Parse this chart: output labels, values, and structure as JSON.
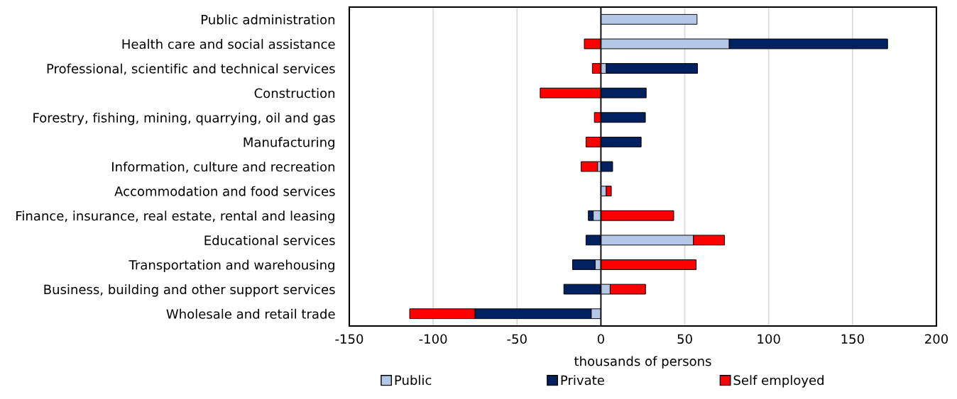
{
  "chart_data": {
    "type": "bar",
    "orientation": "horizontal",
    "stacked": true,
    "categories": [
      "Public administration",
      "Health care and social assistance",
      "Professional, scientific and technical services",
      "Construction",
      "Forestry, fishing, mining, quarrying, oil and gas",
      "Manufacturing",
      "Information, culture and recreation",
      "Accommodation and food services",
      "Finance, insurance, real estate, rental and leasing",
      "Educational services",
      "Transportation and warehousing",
      "Business, building and other support services",
      "Wholesale and retail trade"
    ],
    "series": [
      {
        "name": "Public",
        "color": "#b4c7e7",
        "values": [
          57.3,
          76.5,
          3.2,
          null,
          null,
          null,
          -2.0,
          3.2,
          -4.6,
          55.2,
          -3.5,
          5.5,
          -5.8
        ]
      },
      {
        "name": "Private",
        "color": "#002060",
        "values": [
          null,
          94.4,
          54.4,
          27.0,
          26.5,
          24.0,
          7.0,
          null,
          -2.9,
          -8.9,
          -13.4,
          -22.1,
          -69.3
        ]
      },
      {
        "name": "Self employed",
        "color": "#ff0000",
        "values": [
          null,
          -9.9,
          -5.1,
          -36.2,
          -3.9,
          -8.9,
          -9.8,
          3.0,
          43.4,
          18.5,
          56.8,
          21.1,
          -38.9
        ]
      }
    ],
    "xlabel": "thousands of persons",
    "xlim": [
      -150,
      200
    ],
    "xticks": [
      -150,
      -100,
      -50,
      0,
      50,
      100,
      150,
      200
    ],
    "grid": "x",
    "legend": "bottom",
    "ref_lines": [
      {
        "axis": "x",
        "value": 0,
        "color": "#000000"
      }
    ]
  }
}
